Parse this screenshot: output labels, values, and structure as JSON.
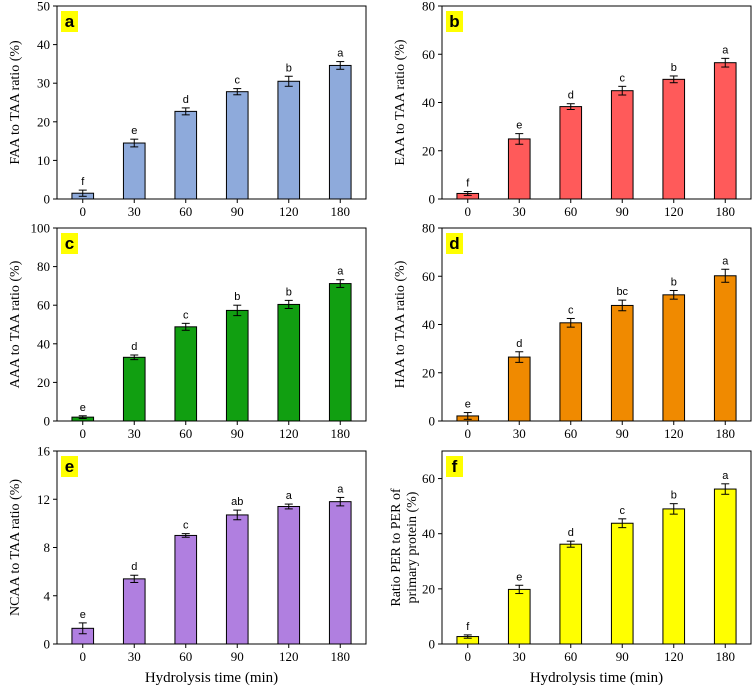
{
  "chart_data": [
    {
      "panel": "a",
      "type": "bar",
      "categories": [
        "0",
        "30",
        "60",
        "90",
        "120",
        "180"
      ],
      "values": [
        1.5,
        14.5,
        22.7,
        27.8,
        30.5,
        34.6
      ],
      "errors": [
        0.8,
        1.0,
        0.9,
        0.8,
        1.3,
        1.0
      ],
      "letters": [
        "f",
        "e",
        "d",
        "c",
        "b",
        "a"
      ],
      "color": "#8eaadb",
      "ylim": [
        0,
        50
      ],
      "yticks": [
        0,
        10,
        20,
        30,
        40,
        50
      ],
      "ylabel": "FAA to TAA ratio (%)",
      "xlabel": ""
    },
    {
      "panel": "b",
      "type": "bar",
      "categories": [
        "0",
        "30",
        "60",
        "90",
        "120",
        "180"
      ],
      "values": [
        2.3,
        24.9,
        38.3,
        44.9,
        49.6,
        56.5
      ],
      "errors": [
        0.8,
        2.2,
        1.2,
        1.8,
        1.4,
        1.8
      ],
      "letters": [
        "f",
        "e",
        "d",
        "c",
        "b",
        "a"
      ],
      "color": "#ff5a5a",
      "ylim": [
        0,
        80
      ],
      "yticks": [
        0,
        20,
        40,
        60,
        80
      ],
      "ylabel": "EAA to TAA ratio (%)",
      "xlabel": ""
    },
    {
      "panel": "c",
      "type": "bar",
      "categories": [
        "0",
        "30",
        "60",
        "90",
        "120",
        "180"
      ],
      "values": [
        2.0,
        33.0,
        48.8,
        57.3,
        60.4,
        71.2
      ],
      "errors": [
        0.7,
        1.2,
        1.8,
        2.7,
        2.1,
        2.0
      ],
      "letters": [
        "e",
        "d",
        "c",
        "b",
        "b",
        "a"
      ],
      "color": "#119f11",
      "ylim": [
        0,
        100
      ],
      "yticks": [
        0,
        20,
        40,
        60,
        80,
        100
      ],
      "ylabel": "AAA to TAA ratio (%)",
      "xlabel": ""
    },
    {
      "panel": "d",
      "type": "bar",
      "categories": [
        "0",
        "30",
        "60",
        "90",
        "120",
        "180"
      ],
      "values": [
        2.1,
        26.5,
        40.7,
        47.9,
        52.3,
        60.2
      ],
      "errors": [
        1.4,
        2.2,
        1.8,
        2.2,
        1.8,
        2.7
      ],
      "letters": [
        "e",
        "d",
        "c",
        "bc",
        "b",
        "a"
      ],
      "color": "#f08a00",
      "ylim": [
        0,
        80
      ],
      "yticks": [
        0,
        20,
        40,
        60,
        80
      ],
      "ylabel": "HAA to TAA ratio (%)",
      "xlabel": ""
    },
    {
      "panel": "e",
      "type": "bar",
      "categories": [
        "0",
        "30",
        "60",
        "90",
        "120",
        "180"
      ],
      "values": [
        1.3,
        5.4,
        9.0,
        10.7,
        11.4,
        11.8
      ],
      "errors": [
        0.45,
        0.3,
        0.15,
        0.4,
        0.2,
        0.35
      ],
      "letters": [
        "e",
        "d",
        "c",
        "ab",
        "a",
        "a"
      ],
      "color": "#b07fe0",
      "ylim": [
        0,
        16
      ],
      "yticks": [
        0,
        4,
        8,
        12,
        16
      ],
      "ylabel": "NCAA to TAA ratio (%)",
      "xlabel": "Hydrolysis time (min)"
    },
    {
      "panel": "f",
      "type": "bar",
      "categories": [
        "0",
        "30",
        "60",
        "90",
        "120",
        "180"
      ],
      "values": [
        2.7,
        19.8,
        36.2,
        43.8,
        49.0,
        56.2
      ],
      "errors": [
        0.6,
        1.5,
        1.1,
        1.6,
        1.9,
        1.9
      ],
      "letters": [
        "f",
        "e",
        "d",
        "c",
        "b",
        "a"
      ],
      "color": "#ffff00",
      "ylim": [
        0,
        70
      ],
      "yticks": [
        0,
        20,
        40,
        60
      ],
      "ylabel": "Ratio PER to PER of primary protein (%)",
      "ylabel_lines": [
        "Ratio PER to PER of",
        "primary protein (%)"
      ],
      "xlabel": "Hydrolysis time (min)"
    }
  ]
}
